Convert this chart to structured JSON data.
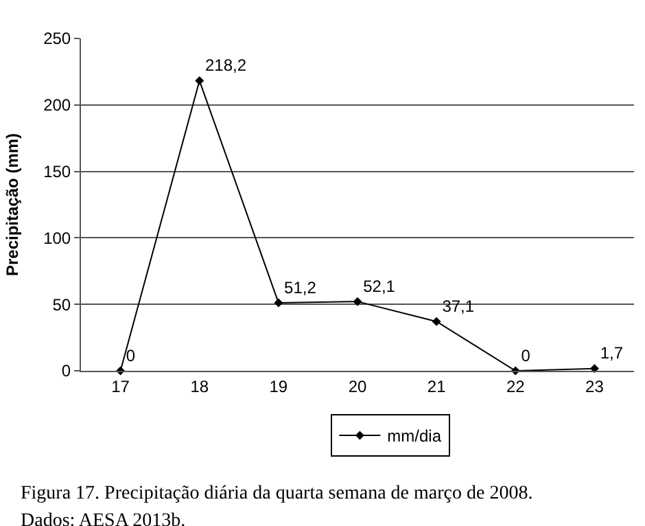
{
  "chart_data": {
    "type": "line",
    "ylabel": "Precipitação (mm)",
    "categories": [
      "17",
      "18",
      "19",
      "20",
      "21",
      "22",
      "23"
    ],
    "series": [
      {
        "name": "mm/dia",
        "color": "#000000",
        "values": [
          0,
          218.2,
          51.2,
          52.1,
          37.1,
          0,
          1.7
        ],
        "value_labels": [
          "0",
          "218,2",
          "51,2",
          "52,1",
          "37,1",
          "0",
          "1,7"
        ]
      }
    ],
    "ylim": [
      0,
      250
    ],
    "yticks": [
      0,
      50,
      100,
      150,
      200,
      250
    ],
    "grid": "y",
    "legend": "bottom",
    "marker": "diamond",
    "line_style": "solid",
    "annotations": [
      "Figura 17. Precipitação diária da quarta semana de março de 2008.",
      "Dados: AESA 2013b."
    ]
  }
}
